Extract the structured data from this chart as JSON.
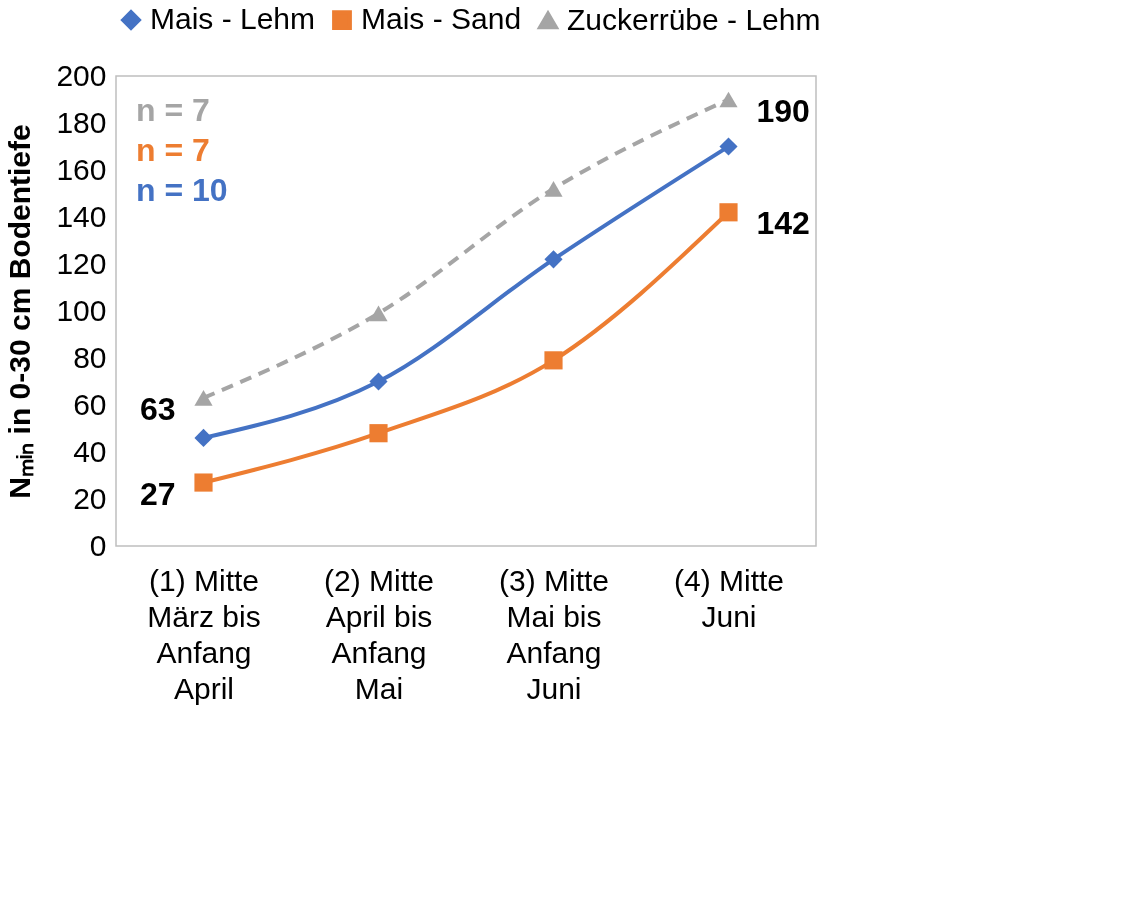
{
  "chart_data": {
    "type": "line",
    "ylabel": "Nₘᵢₙ in 0-30 cm Bodentiefe",
    "categories": [
      "(1) Mitte\nMärz bis\nAnfang\nApril",
      "(2) Mitte\nApril bis\nAnfang\nMai",
      "(3) Mitte\nMai bis\nAnfang\nJuni",
      "(4) Mitte\nJuni"
    ],
    "series": [
      {
        "name": "Mais - Lehm",
        "color": "#4472c4",
        "values": [
          46,
          70,
          122,
          170
        ],
        "marker": "diamond",
        "line_style": "solid"
      },
      {
        "name": "Mais - Sand",
        "color": "#ed7d31",
        "values": [
          27,
          48,
          79,
          142
        ],
        "marker": "square",
        "line_style": "solid",
        "value_labels": [
          "27",
          null,
          null,
          "142"
        ]
      },
      {
        "name": "Zuckerrübe - Lehm",
        "color": "#a5a5a5",
        "values": [
          63,
          99,
          152,
          190
        ],
        "marker": "triangle",
        "line_style": "dashed",
        "value_labels": [
          "63",
          null,
          null,
          "190"
        ]
      }
    ],
    "ylim": [
      0,
      200
    ],
    "yticks": [
      0,
      20,
      40,
      60,
      80,
      100,
      120,
      140,
      160,
      180,
      200
    ],
    "annotations": [
      "n =   7",
      "n =   7",
      "n = 10"
    ],
    "legend": "top",
    "grid": false
  }
}
